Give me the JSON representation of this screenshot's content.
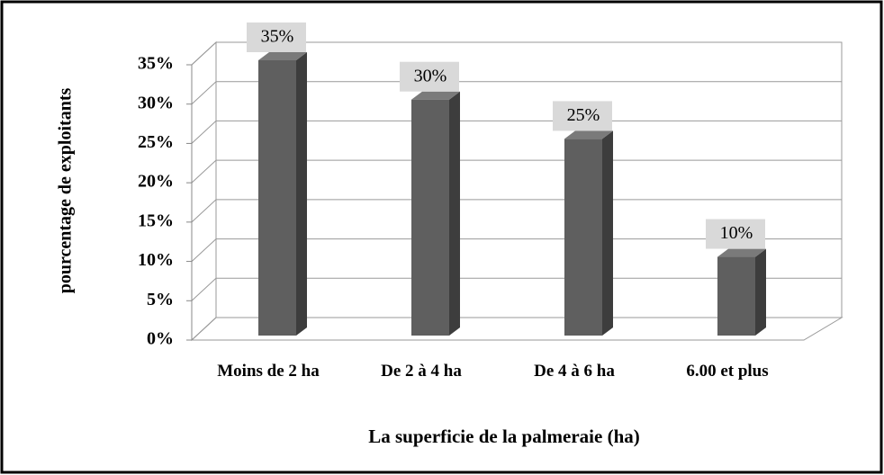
{
  "chart_data": {
    "type": "bar3d",
    "y_axis_label": "pourcentage de exploitants",
    "x_axis_label": "La superficie de la palmeraie (ha)",
    "categories": [
      "Moins de 2 ha",
      "De 2 à 4 ha",
      "De 4 à 6 ha",
      "6.00 et plus"
    ],
    "values": [
      35,
      30,
      25,
      10
    ],
    "value_labels": [
      "35%",
      "30%",
      "25%",
      "10%"
    ],
    "color": "#5f5f5f",
    "ylim": [
      0,
      35
    ],
    "yticks": [
      {
        "value": 0,
        "label": "0%"
      },
      {
        "value": 5,
        "label": "5%"
      },
      {
        "value": 10,
        "label": "10%"
      },
      {
        "value": 15,
        "label": "15%"
      },
      {
        "value": 20,
        "label": "20%"
      },
      {
        "value": 25,
        "label": "25%"
      },
      {
        "value": 30,
        "label": "30%"
      },
      {
        "value": 35,
        "label": "35%"
      }
    ],
    "grid": true
  }
}
